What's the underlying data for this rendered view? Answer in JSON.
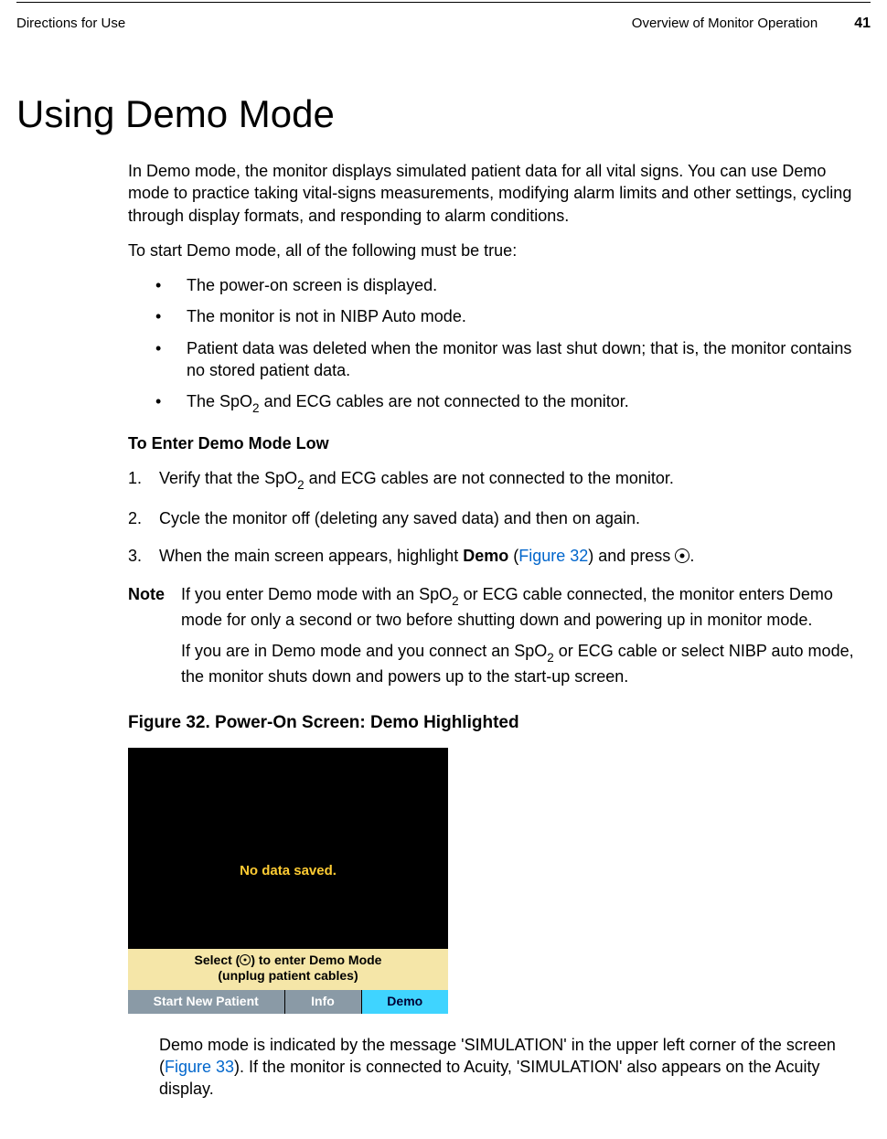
{
  "header": {
    "left": "Directions for Use",
    "right": "Overview of Monitor Operation",
    "page": "41"
  },
  "title": "Using Demo Mode",
  "intro": "In Demo mode, the monitor displays simulated patient data for all vital signs. You can use Demo mode to practice taking vital-signs measurements, modifying alarm limits and other settings, cycling through display formats, and responding to alarm conditions.",
  "start_intro": "To start Demo mode, all of the following must be true:",
  "bullets": {
    "b1": "The power-on screen is displayed.",
    "b2": "The monitor is not in NIBP Auto mode.",
    "b3": "Patient data was deleted when the monitor was last shut down; that is, the monitor contains no stored patient data.",
    "b4_pre": "The SpO",
    "b4_sub": "2",
    "b4_post": " and ECG cables are not connected to the monitor."
  },
  "subhead": "To Enter Demo Mode Low",
  "steps": {
    "s1_pre": "Verify that the SpO",
    "s1_sub": "2",
    "s1_post": " and ECG cables are not connected to the monitor.",
    "s2": "Cycle the monitor off (deleting any saved data) and then on again.",
    "s3_pre": "When the main screen appears, highlight ",
    "s3_bold": "Demo",
    "s3_mid": " (",
    "s3_link": "Figure 32",
    "s3_post1": ") and press ",
    "s3_post2": "."
  },
  "note": {
    "label": "Note",
    "p1_pre": "If you enter Demo mode with an SpO",
    "p1_sub": "2",
    "p1_post": " or ECG cable connected, the monitor enters Demo mode for only a second or two before shutting down and powering up in monitor mode.",
    "p2_pre": "If you are in Demo mode and you connect an SpO",
    "p2_sub": "2",
    "p2_post": " or ECG cable or select NIBP auto mode, the monitor shuts down and powers up to the start-up screen."
  },
  "figure": {
    "caption": "Figure 32.  Power-On Screen: Demo Highlighted",
    "mid_text": "No data saved.",
    "hint_l1_pre": "Select (",
    "hint_l1_post": ") to enter Demo Mode",
    "hint_l2": "(unplug patient cables)",
    "btn1": "Start New Patient",
    "btn2": "Info",
    "btn3": "Demo",
    "colors": {
      "screen_bg": "#000000",
      "text_yellow": "#ffcc33",
      "hint_bg": "#f5e6a8",
      "btn_gray": "#8a9aa6",
      "btn_cyan": "#3fd4ff"
    }
  },
  "closing": {
    "pre": "Demo mode is indicated by the message 'SIMULATION' in the upper left corner of the screen (",
    "link": "Figure 33",
    "post": "). If the monitor is connected to Acuity, 'SIMULATION' also appears on the Acuity display."
  }
}
